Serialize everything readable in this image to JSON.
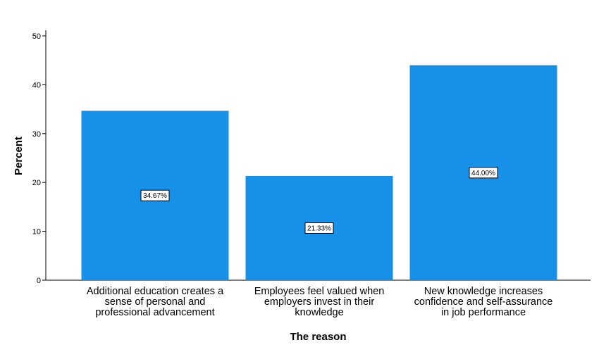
{
  "chart_data": {
    "type": "bar",
    "categories": [
      [
        "Additional education creates a",
        "sense of personal and",
        "professional advancement"
      ],
      [
        "Employees feel valued when",
        "employers invest in their",
        "knowledge"
      ],
      [
        "New knowledge increases",
        "confidence and self-assurance",
        "in job performance"
      ]
    ],
    "values": [
      34.67,
      21.33,
      44.0
    ],
    "data_labels": [
      "34.67%",
      "21.33%",
      "44.00%"
    ],
    "xlabel": "The reason",
    "ylabel": "Percent",
    "ylim": [
      0,
      50
    ],
    "yticks": [
      "0",
      "10",
      "20",
      "30",
      "40",
      "50"
    ],
    "bar_color": "#1791e8",
    "grid": false,
    "legend": "none"
  }
}
